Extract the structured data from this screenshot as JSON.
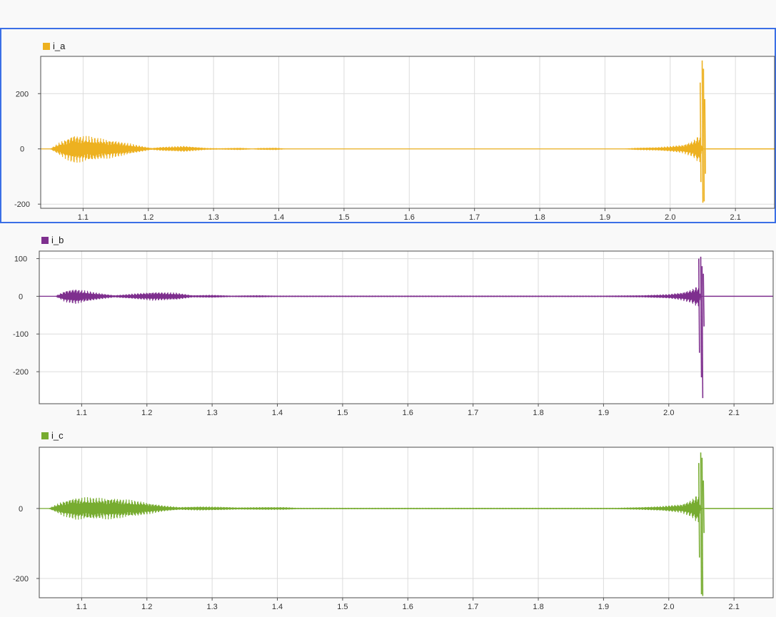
{
  "chart_data": [
    {
      "type": "line",
      "legend": "top-left",
      "grid": true,
      "series": [
        {
          "name": "i_a",
          "color": "#EDB120"
        }
      ],
      "xlim": [
        1.035,
        2.16
      ],
      "ylim": [
        -215,
        335
      ],
      "xticks": [
        1.1,
        1.2,
        1.3,
        1.4,
        1.5,
        1.6,
        1.7,
        1.8,
        1.9,
        2.0,
        2.1
      ],
      "xtick_labels": [
        "1.1",
        "1.2",
        "1.3",
        "1.4",
        "1.5",
        "1.6",
        "1.7",
        "1.8",
        "1.9",
        "2.0",
        "2.1"
      ],
      "yticks": [
        -200,
        0,
        200
      ],
      "ytick_labels": [
        "-200",
        "0",
        "200"
      ],
      "selected": true,
      "envelope": [
        [
          1.05,
          0
        ],
        [
          1.065,
          25
        ],
        [
          1.085,
          52
        ],
        [
          1.11,
          45
        ],
        [
          1.15,
          30
        ],
        [
          1.185,
          12
        ],
        [
          1.205,
          2
        ],
        [
          1.22,
          6
        ],
        [
          1.255,
          10
        ],
        [
          1.29,
          2
        ],
        [
          1.31,
          1
        ],
        [
          1.34,
          3
        ],
        [
          1.36,
          0
        ],
        [
          1.37,
          2
        ],
        [
          1.395,
          3
        ],
        [
          1.41,
          0
        ],
        [
          1.93,
          0
        ],
        [
          1.95,
          3
        ],
        [
          1.98,
          5
        ],
        [
          2.0,
          9
        ],
        [
          2.02,
          15
        ],
        [
          2.035,
          30
        ],
        [
          2.045,
          55
        ],
        [
          2.05,
          0
        ]
      ],
      "spikes": [
        [
          2.046,
          240,
          -120
        ],
        [
          2.049,
          320,
          -195
        ],
        [
          2.051,
          290,
          -190
        ],
        [
          2.053,
          180,
          -90
        ]
      ]
    },
    {
      "type": "line",
      "legend": "top-left",
      "grid": true,
      "series": [
        {
          "name": "i_b",
          "color": "#7E2F8E"
        }
      ],
      "xlim": [
        1.035,
        2.16
      ],
      "ylim": [
        -285,
        120
      ],
      "xticks": [
        1.1,
        1.2,
        1.3,
        1.4,
        1.5,
        1.6,
        1.7,
        1.8,
        1.9,
        2.0,
        2.1
      ],
      "xtick_labels": [
        "1.1",
        "1.2",
        "1.3",
        "1.4",
        "1.5",
        "1.6",
        "1.7",
        "1.8",
        "1.9",
        "2.0",
        "2.1"
      ],
      "yticks": [
        -200,
        -100,
        0,
        100
      ],
      "ytick_labels": [
        "-200",
        "-100",
        "0",
        "100"
      ],
      "selected": false,
      "envelope": [
        [
          1.06,
          0
        ],
        [
          1.075,
          15
        ],
        [
          1.09,
          20
        ],
        [
          1.12,
          10
        ],
        [
          1.15,
          2
        ],
        [
          1.17,
          5
        ],
        [
          1.21,
          11
        ],
        [
          1.245,
          9
        ],
        [
          1.27,
          2
        ],
        [
          1.3,
          3
        ],
        [
          1.33,
          1
        ],
        [
          1.37,
          2
        ],
        [
          1.4,
          1
        ],
        [
          1.45,
          1
        ],
        [
          1.9,
          1
        ],
        [
          1.96,
          2
        ],
        [
          2.0,
          5
        ],
        [
          2.02,
          10
        ],
        [
          2.035,
          18
        ],
        [
          2.045,
          30
        ],
        [
          2.05,
          0
        ]
      ],
      "spikes": [
        [
          2.046,
          100,
          -150
        ],
        [
          2.049,
          105,
          -215
        ],
        [
          2.051,
          80,
          -270
        ],
        [
          2.053,
          60,
          -80
        ]
      ]
    },
    {
      "type": "line",
      "legend": "top-left",
      "grid": true,
      "series": [
        {
          "name": "i_c",
          "color": "#77AC30"
        }
      ],
      "xlim": [
        1.035,
        2.16
      ],
      "ylim": [
        -255,
        175
      ],
      "xticks": [
        1.1,
        1.2,
        1.3,
        1.4,
        1.5,
        1.6,
        1.7,
        1.8,
        1.9,
        2.0,
        2.1
      ],
      "xtick_labels": [
        "1.1",
        "1.2",
        "1.3",
        "1.4",
        "1.5",
        "1.6",
        "1.7",
        "1.8",
        "1.9",
        "2.0",
        "2.1"
      ],
      "yticks": [
        -200,
        0
      ],
      "ytick_labels": [
        "-200",
        "0"
      ],
      "selected": false,
      "envelope": [
        [
          1.05,
          0
        ],
        [
          1.07,
          20
        ],
        [
          1.09,
          32
        ],
        [
          1.15,
          30
        ],
        [
          1.19,
          20
        ],
        [
          1.225,
          8
        ],
        [
          1.25,
          3
        ],
        [
          1.28,
          5
        ],
        [
          1.31,
          4
        ],
        [
          1.34,
          2
        ],
        [
          1.38,
          3
        ],
        [
          1.41,
          3
        ],
        [
          1.43,
          1
        ],
        [
          1.45,
          1
        ],
        [
          1.92,
          1
        ],
        [
          1.96,
          3
        ],
        [
          1.99,
          6
        ],
        [
          2.02,
          12
        ],
        [
          2.035,
          25
        ],
        [
          2.045,
          45
        ],
        [
          2.05,
          0
        ]
      ],
      "spikes": [
        [
          2.046,
          130,
          -140
        ],
        [
          2.049,
          160,
          -245
        ],
        [
          2.051,
          145,
          -250
        ],
        [
          2.053,
          80,
          -70
        ]
      ]
    }
  ]
}
